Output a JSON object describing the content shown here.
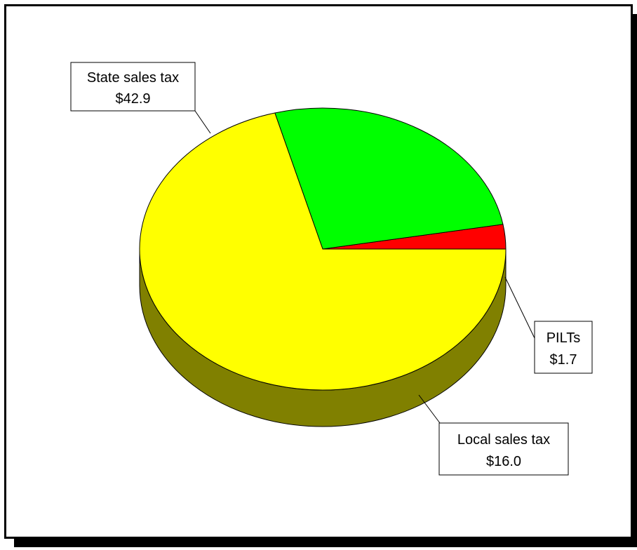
{
  "chart_data": {
    "type": "pie",
    "style": "3d",
    "slices": [
      {
        "label": "State sales tax",
        "value": 42.9,
        "display": "$42.9",
        "color": "#FFFF00",
        "side_color": "#808000"
      },
      {
        "label": "Local sales tax",
        "value": 16.0,
        "display": "$16.0",
        "color": "#00FF00",
        "side_color": "#008000"
      },
      {
        "label": "PILTs",
        "value": 1.7,
        "display": "$1.7",
        "color": "#FF0000",
        "side_color": "#800000"
      }
    ]
  }
}
